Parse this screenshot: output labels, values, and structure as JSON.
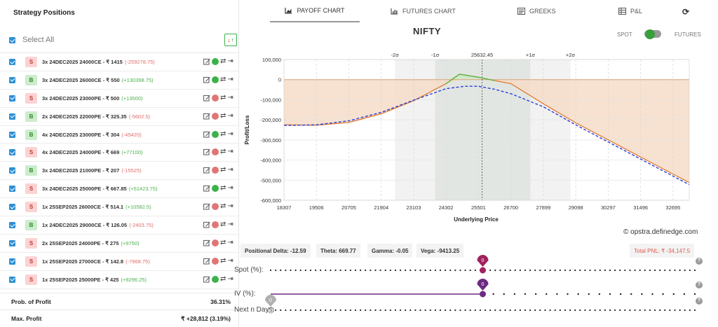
{
  "left": {
    "header": "Strategy Positions",
    "select_all": "Select All",
    "sort_icon": "sort-arrows-icon",
    "positions": [
      {
        "side": "S",
        "text": "3x 24DEC2025 24000CE - ₹ 1415",
        "pnl": "(-259278.75)",
        "pnl_sign": "neg",
        "status": "green"
      },
      {
        "side": "B",
        "text": "3x 24DEC2025 26000CE - ₹ 550",
        "pnl": "(+130398.75)",
        "pnl_sign": "pos",
        "status": "green"
      },
      {
        "side": "S",
        "text": "3x 24DEC2025 23000PE - ₹ 500",
        "pnl": "(+13500)",
        "pnl_sign": "pos",
        "status": "red"
      },
      {
        "side": "B",
        "text": "2x 24DEC2025 22000PE - ₹ 325.35",
        "pnl": "(-5602.5)",
        "pnl_sign": "neg",
        "status": "red"
      },
      {
        "side": "B",
        "text": "4x 24DEC2025 23000PE - ₹ 304",
        "pnl": "(-45420)",
        "pnl_sign": "neg",
        "status": "green"
      },
      {
        "side": "S",
        "text": "4x 24DEC2025 24000PE - ₹ 669",
        "pnl": "(+77100)",
        "pnl_sign": "pos",
        "status": "red"
      },
      {
        "side": "B",
        "text": "3x 24DEC2025 21000PE - ₹ 207",
        "pnl": "(-15525)",
        "pnl_sign": "neg",
        "status": "red"
      },
      {
        "side": "S",
        "text": "3x 24DEC2025 25000PE - ₹ 667.85",
        "pnl": "(+51423.75)",
        "pnl_sign": "pos",
        "status": "green"
      },
      {
        "side": "S",
        "text": "1x 25SEP2025 26000CE - ₹ 514.1",
        "pnl": "(+10582.5)",
        "pnl_sign": "pos",
        "status": "red"
      },
      {
        "side": "B",
        "text": "1x 24DEC2025 29000CE - ₹ 126.05",
        "pnl": "(-2403.75)",
        "pnl_sign": "neg",
        "status": "red"
      },
      {
        "side": "S",
        "text": "2x 25SEP2025 24000PE - ₹ 275",
        "pnl": "(+9750)",
        "pnl_sign": "pos",
        "status": "red"
      },
      {
        "side": "S",
        "text": "1x 25SEP2025 27000CE - ₹ 142.8",
        "pnl": "(-7968.75)",
        "pnl_sign": "neg",
        "status": "red"
      },
      {
        "side": "S",
        "text": "1x 25SEP2025 25000PE - ₹ 425",
        "pnl": "(+9296.25)",
        "pnl_sign": "pos",
        "status": "green"
      }
    ],
    "metrics": [
      {
        "label": "Prob. of Profit",
        "value": "36.31%"
      },
      {
        "label": "Max. Profit",
        "value": "₹ +28,812 (3.19%)"
      }
    ]
  },
  "tabs": [
    {
      "label": "PAYOFF CHART",
      "icon": "area-chart-icon",
      "active": true
    },
    {
      "label": "FUTURES CHART",
      "icon": "bar-chart-icon",
      "active": false
    },
    {
      "label": "GREEKS",
      "icon": "list-icon",
      "active": false
    },
    {
      "label": "P&L",
      "icon": "table-icon",
      "active": false
    }
  ],
  "refresh_icon": "refresh-icon",
  "chart_header": {
    "title": "NIFTY",
    "spot": "SPOT",
    "futures": "FUTURES",
    "toggle": "futures"
  },
  "chart_data": {
    "type": "line",
    "title": "NIFTY",
    "xlabel": "Underlying Price",
    "ylabel": "Profit/Loss",
    "xlim": [
      18307,
      33295
    ],
    "ylim": [
      -600000,
      100000
    ],
    "x_ticks": [
      18307,
      19506,
      20705,
      21904,
      23103,
      24302,
      25501,
      26700,
      27899,
      29098,
      30297,
      31496,
      32695
    ],
    "y_ticks": [
      100000,
      0,
      -100000,
      -200000,
      -300000,
      -400000,
      -500000,
      -600000
    ],
    "y_tick_labels": [
      "100,000",
      "0",
      "-100,000",
      "-200,000",
      "-300,000",
      "-400,000",
      "-500,000",
      "-600,000"
    ],
    "sigma_levels": [
      {
        "label": "-2σ",
        "x": 22410
      },
      {
        "label": "-1σ",
        "x": 23900
      },
      {
        "label": "25632.45",
        "x": 25632.45
      },
      {
        "label": "+1σ",
        "x": 27420
      },
      {
        "label": "+2σ",
        "x": 28900
      }
    ],
    "shade_1sigma": [
      23900,
      27420
    ],
    "shade_2sigma": [
      22410,
      28900
    ],
    "series": [
      {
        "style": "solid",
        "color": "#e07b2f",
        "x": [
          18307,
          19506,
          20705,
          21904,
          23103,
          24302,
          24800,
          25501,
          26100,
          26700,
          27899,
          29098,
          30297,
          31496,
          32695,
          33295
        ],
        "y": [
          -225000,
          -227000,
          -213000,
          -170000,
          -105000,
          -20000,
          27000,
          12000,
          -5000,
          -20000,
          -120000,
          -215000,
          -300000,
          -385000,
          -470000,
          -512000
        ]
      },
      {
        "style": "dashed",
        "color": "#2a3ed6",
        "x": [
          18307,
          19506,
          20705,
          21904,
          23103,
          24302,
          25000,
          25501,
          26100,
          26700,
          27899,
          29098,
          30297,
          31496,
          32695,
          33295
        ],
        "y": [
          -228000,
          -225000,
          -205000,
          -163000,
          -102000,
          -45000,
          -33000,
          -33000,
          -48000,
          -70000,
          -135000,
          -225000,
          -310000,
          -395000,
          -480000,
          -522000
        ]
      },
      {
        "style": "solid",
        "color": "#54b848",
        "x": [
          24302,
          24800,
          25501,
          26100
        ],
        "y": [
          -20000,
          27000,
          12000,
          -5000
        ]
      }
    ]
  },
  "watermark": "© opstra.definedge.com",
  "greeks": [
    {
      "label": "Positional Delta: -12.59"
    },
    {
      "label": "Theta: 669.77"
    },
    {
      "label": "Gamma: -0.05"
    },
    {
      "label": "Vega: -9413.25"
    }
  ],
  "total_pnl": "Total PNL: ₹ -34,147.5",
  "sliders": [
    {
      "label": "Spot (%):",
      "value": "0",
      "level": 0.5,
      "color": "#a0225f"
    },
    {
      "label": "IV (%):",
      "value": "0",
      "level": 0.5,
      "color": "#6b2a82"
    },
    {
      "label": "Next n Days:",
      "value": "0",
      "level": 0.0,
      "color": "#b0b0b0"
    }
  ],
  "help_icon": "?"
}
